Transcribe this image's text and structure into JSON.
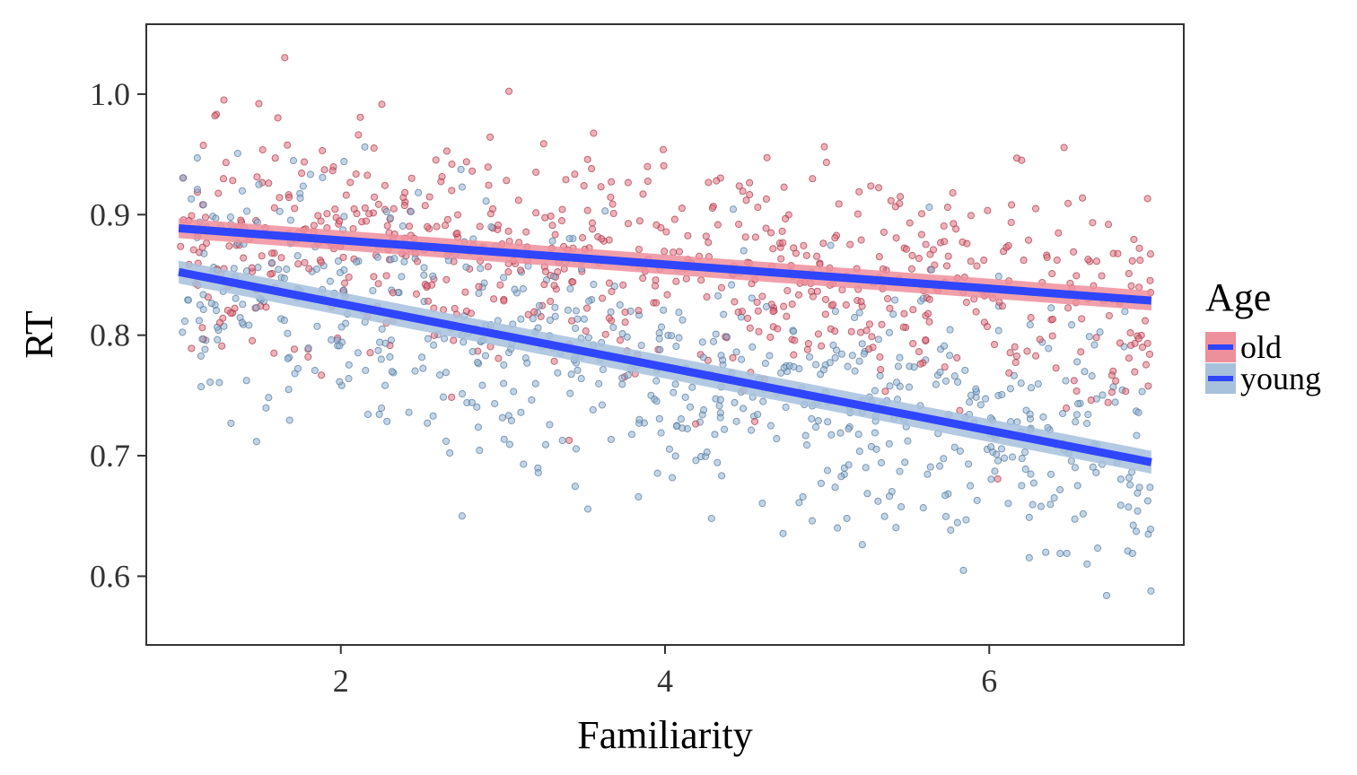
{
  "chart_data": {
    "type": "scatter",
    "title": "",
    "xlabel": "Familiarity",
    "ylabel": "RT",
    "xlim": [
      0.8,
      7.2
    ],
    "ylim": [
      0.543,
      1.058
    ],
    "x_ticks": [
      2,
      4,
      6
    ],
    "x_tick_labels": [
      "2",
      "4",
      "6"
    ],
    "y_ticks": [
      0.6,
      0.7,
      0.8,
      0.9,
      1.0
    ],
    "y_tick_labels": [
      "0.6",
      "0.7",
      "0.8",
      "0.9",
      "1.0"
    ],
    "grid": false,
    "legend": {
      "title": "Age",
      "position": "right",
      "entries": [
        "old",
        "young"
      ]
    },
    "points_per_series": 700,
    "point_x_range": [
      1.0,
      7.0
    ],
    "series": [
      {
        "name": "old",
        "point_color": "#e07080",
        "point_edge": "#a03040",
        "band_color": "#ee8f9c",
        "trend": {
          "intercept": 0.8987,
          "slope": -0.01,
          "x_range": [
            1.0,
            7.0
          ],
          "residual_sd": 0.045
        }
      },
      {
        "name": "young",
        "point_color": "#8fb0cf",
        "point_edge": "#4a6f96",
        "band_color": "#a7c1dd",
        "trend": {
          "intercept": 0.8787,
          "slope": -0.0263,
          "x_range": [
            1.0,
            7.0
          ],
          "residual_sd": 0.052
        }
      }
    ],
    "line_color": "#2f45ff"
  }
}
